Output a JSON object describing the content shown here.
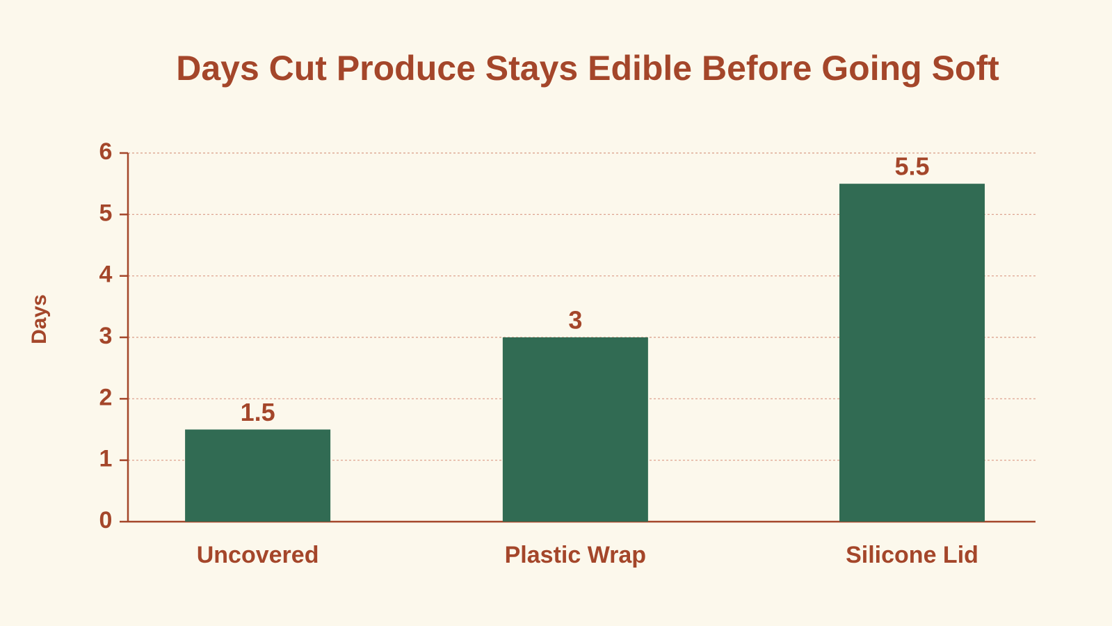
{
  "chart_data": {
    "type": "bar",
    "title": "Days Cut Produce Stays Edible Before Going Soft",
    "y_label": "Days",
    "categories": [
      "Uncovered",
      "Plastic Wrap",
      "Silicone Lid"
    ],
    "values": [
      1.5,
      3,
      5.5
    ],
    "color": "#316b53",
    "ylim": [
      0,
      6
    ],
    "yticks": [
      0,
      1,
      2,
      3,
      4,
      5,
      6
    ],
    "grid": true
  }
}
